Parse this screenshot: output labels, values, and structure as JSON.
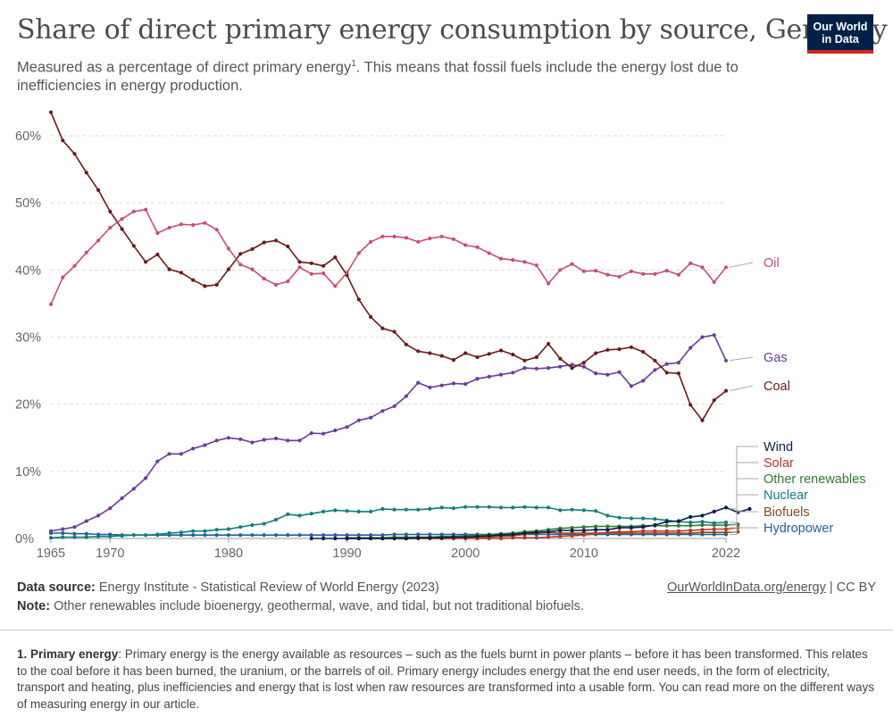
{
  "header": {
    "title": "Share of direct primary energy consumption by source, Germany",
    "subtitle_main": "Measured as a percentage of direct primary energy",
    "subtitle_sup": "1",
    "subtitle_rest": ". This means that fossil fuels include the energy lost due to inefficiencies in energy production.",
    "logo_line1": "Our World",
    "logo_line2": "in Data"
  },
  "colors": {
    "oil": "#c84f6b",
    "gas": "#6a3d9a",
    "coal": "#6b1a1a",
    "wind": "#0c1c4d",
    "solar": "#b8392a",
    "other": "#2f7a2f",
    "nuclear": "#0f7f7f",
    "biofuels": "#8a4a1c",
    "hydro": "#1f5fa8",
    "grid": "#dddddd",
    "logo_bg": "#002147",
    "logo_accent": "#ce261e"
  },
  "chart_data": {
    "type": "line",
    "x_range": [
      1965,
      2022
    ],
    "ylim": [
      0,
      60
    ],
    "y_ticks": [
      0,
      10,
      20,
      30,
      40,
      50,
      60
    ],
    "y_tick_labels": [
      "0%",
      "10%",
      "20%",
      "30%",
      "40%",
      "50%",
      "60%"
    ],
    "x_ticks": [
      1965,
      1970,
      1980,
      1990,
      2000,
      2010,
      2022
    ],
    "x_tick_labels": [
      "1965",
      "1970",
      "1980",
      "1990",
      "2000",
      "2010",
      "2022"
    ],
    "grid": "horizontal dashed",
    "legend": "inline labels at right end of lines",
    "series": [
      {
        "name": "Oil",
        "key": "oil",
        "start": 1965,
        "values": [
          34.9,
          38.9,
          40.6,
          42.6,
          44.4,
          46.3,
          47.6,
          48.7,
          49.0,
          45.5,
          46.3,
          46.8,
          46.7,
          47.0,
          46.0,
          43.2,
          40.8,
          40.1,
          38.7,
          37.8,
          38.3,
          40.4,
          39.4,
          39.5,
          37.6,
          39.6,
          42.5,
          44.2,
          45.0,
          45.0,
          44.8,
          44.2,
          44.7,
          45.0,
          44.6,
          43.7,
          43.4,
          42.5,
          41.7,
          41.5,
          41.2,
          40.7,
          38.0,
          40.0,
          40.9,
          39.8,
          39.9,
          39.3,
          39.0,
          39.8,
          39.4,
          39.4,
          39.9,
          39.3,
          41.0,
          40.4,
          38.2,
          40.4
        ]
      },
      {
        "name": "Gas",
        "key": "gas",
        "start": 1965,
        "values": [
          1.1,
          1.4,
          1.7,
          2.6,
          3.4,
          4.5,
          6.0,
          7.4,
          9.0,
          11.5,
          12.6,
          12.6,
          13.4,
          13.9,
          14.6,
          15.0,
          14.8,
          14.3,
          14.7,
          14.9,
          14.6,
          14.6,
          15.7,
          15.6,
          16.1,
          16.6,
          17.6,
          18.0,
          19.0,
          19.7,
          21.2,
          23.2,
          22.5,
          22.8,
          23.1,
          23.0,
          23.8,
          24.1,
          24.4,
          24.7,
          25.4,
          25.3,
          25.4,
          25.6,
          25.9,
          25.6,
          24.6,
          24.4,
          24.8,
          22.7,
          23.5,
          25.1,
          26.0,
          26.2,
          28.4,
          30.0,
          30.3,
          26.5
        ]
      },
      {
        "name": "Coal",
        "key": "coal",
        "start": 1965,
        "values": [
          63.5,
          59.3,
          57.3,
          54.5,
          51.9,
          48.7,
          46.1,
          43.6,
          41.2,
          42.3,
          40.1,
          39.6,
          38.5,
          37.6,
          37.8,
          40.1,
          42.4,
          43.1,
          44.1,
          44.4,
          43.5,
          41.2,
          41.0,
          40.6,
          41.9,
          39.2,
          35.6,
          33.0,
          31.3,
          30.8,
          28.9,
          27.9,
          27.6,
          27.2,
          26.6,
          27.6,
          27.0,
          27.5,
          28.0,
          27.4,
          26.5,
          27.0,
          29.0,
          26.8,
          25.4,
          26.2,
          27.6,
          28.1,
          28.2,
          28.5,
          27.8,
          26.5,
          24.7,
          24.6,
          19.9,
          17.6,
          20.6,
          22.0
        ]
      },
      {
        "name": "Nuclear",
        "key": "nuclear",
        "start": 1965,
        "values": [
          0.1,
          0.2,
          0.2,
          0.2,
          0.3,
          0.3,
          0.4,
          0.5,
          0.5,
          0.6,
          0.8,
          0.9,
          1.1,
          1.1,
          1.3,
          1.4,
          1.7,
          2.0,
          2.2,
          2.8,
          3.6,
          3.4,
          3.7,
          4.0,
          4.2,
          4.1,
          4.0,
          4.0,
          4.4,
          4.3,
          4.3,
          4.3,
          4.4,
          4.6,
          4.5,
          4.7,
          4.7,
          4.7,
          4.6,
          4.6,
          4.7,
          4.6,
          4.6,
          4.2,
          4.3,
          4.2,
          4.1,
          3.4,
          3.1,
          3.0,
          3.0,
          2.9,
          2.7,
          2.5,
          2.4,
          2.5,
          2.3,
          2.4
        ]
      },
      {
        "name": "Hydropower",
        "key": "hydro",
        "start": 1965,
        "values": [
          0.8,
          0.8,
          0.7,
          0.7,
          0.6,
          0.6,
          0.5,
          0.5,
          0.5,
          0.5,
          0.5,
          0.5,
          0.5,
          0.5,
          0.5,
          0.5,
          0.5,
          0.5,
          0.5,
          0.5,
          0.5,
          0.5,
          0.5,
          0.5,
          0.5,
          0.5,
          0.5,
          0.5,
          0.5,
          0.6,
          0.6,
          0.6,
          0.6,
          0.6,
          0.6,
          0.6,
          0.6,
          0.6,
          0.6,
          0.6,
          0.6,
          0.6,
          0.6,
          0.6,
          0.6,
          0.6,
          0.6,
          0.6,
          0.6,
          0.6,
          0.6,
          0.6,
          0.6,
          0.6,
          0.6,
          0.6,
          0.6,
          0.6
        ]
      },
      {
        "name": "Wind",
        "key": "wind",
        "start": 1987,
        "values": [
          0.0,
          0.0,
          0.0,
          0.0,
          0.0,
          0.0,
          0.0,
          0.0,
          0.0,
          0.1,
          0.1,
          0.1,
          0.2,
          0.2,
          0.3,
          0.4,
          0.5,
          0.6,
          0.8,
          0.9,
          1.0,
          1.2,
          1.2,
          1.2,
          1.3,
          1.3,
          1.6,
          1.6,
          1.7,
          2.0,
          2.5,
          2.6,
          3.2,
          3.4,
          4.0,
          4.6,
          3.9,
          4.4
        ]
      },
      {
        "name": "Solar",
        "key": "solar",
        "start": 1990,
        "values": [
          0.0,
          0.0,
          0.0,
          0.0,
          0.0,
          0.0,
          0.0,
          0.0,
          0.0,
          0.0,
          0.0,
          0.0,
          0.0,
          0.0,
          0.1,
          0.1,
          0.1,
          0.2,
          0.3,
          0.4,
          0.5,
          0.7,
          0.9,
          1.0,
          1.0,
          1.1,
          1.1,
          1.1,
          1.1,
          1.2,
          1.3,
          1.4,
          1.4,
          1.6
        ]
      },
      {
        "name": "Biofuels",
        "key": "biofuels",
        "start": 1990,
        "values": [
          0.0,
          0.0,
          0.0,
          0.0,
          0.0,
          0.0,
          0.0,
          0.0,
          0.0,
          0.0,
          0.1,
          0.1,
          0.2,
          0.3,
          0.4,
          0.6,
          0.8,
          0.9,
          0.8,
          0.8,
          0.8,
          0.8,
          0.8,
          0.8,
          0.8,
          0.8,
          0.8,
          0.8,
          0.8,
          0.8,
          0.9,
          0.9,
          0.9,
          1.0
        ]
      },
      {
        "name": "Other renewables",
        "key": "other",
        "start": 1990,
        "values": [
          0.1,
          0.1,
          0.1,
          0.1,
          0.2,
          0.2,
          0.2,
          0.2,
          0.3,
          0.3,
          0.4,
          0.5,
          0.6,
          0.7,
          0.8,
          1.0,
          1.1,
          1.3,
          1.5,
          1.6,
          1.7,
          1.8,
          1.8,
          1.8,
          1.8,
          1.9,
          1.9,
          1.9,
          1.9,
          1.9,
          2.0,
          2.0,
          2.0,
          2.1
        ]
      }
    ]
  },
  "labels": {
    "oil": "Oil",
    "gas": "Gas",
    "coal": "Coal",
    "wind": "Wind",
    "solar": "Solar",
    "other": "Other renewables",
    "nuclear": "Nuclear",
    "biofuels": "Biofuels",
    "hydro": "Hydropower"
  },
  "footer": {
    "source_label": "Data source:",
    "source_text": " Energy Institute - Statistical Review of World Energy (2023)",
    "note_label": "Note:",
    "note_text": " Other renewables include bioenergy, geothermal, wave, and tidal, but not traditional biofuels.",
    "link": "OurWorldInData.org/energy",
    "license": " | CC BY"
  },
  "footnote": {
    "label": "1. Primary energy",
    "text": ": Primary energy is the energy available as resources – such as the fuels burnt in power plants – before it has been transformed. This relates to the coal before it has been burned, the uranium, or the barrels of oil. Primary energy includes energy that the end user needs, in the form of electricity, transport and heating, plus inefficiencies and energy that is lost when raw resources are transformed into a usable form. You can read more on the different ways of measuring energy in our article."
  }
}
